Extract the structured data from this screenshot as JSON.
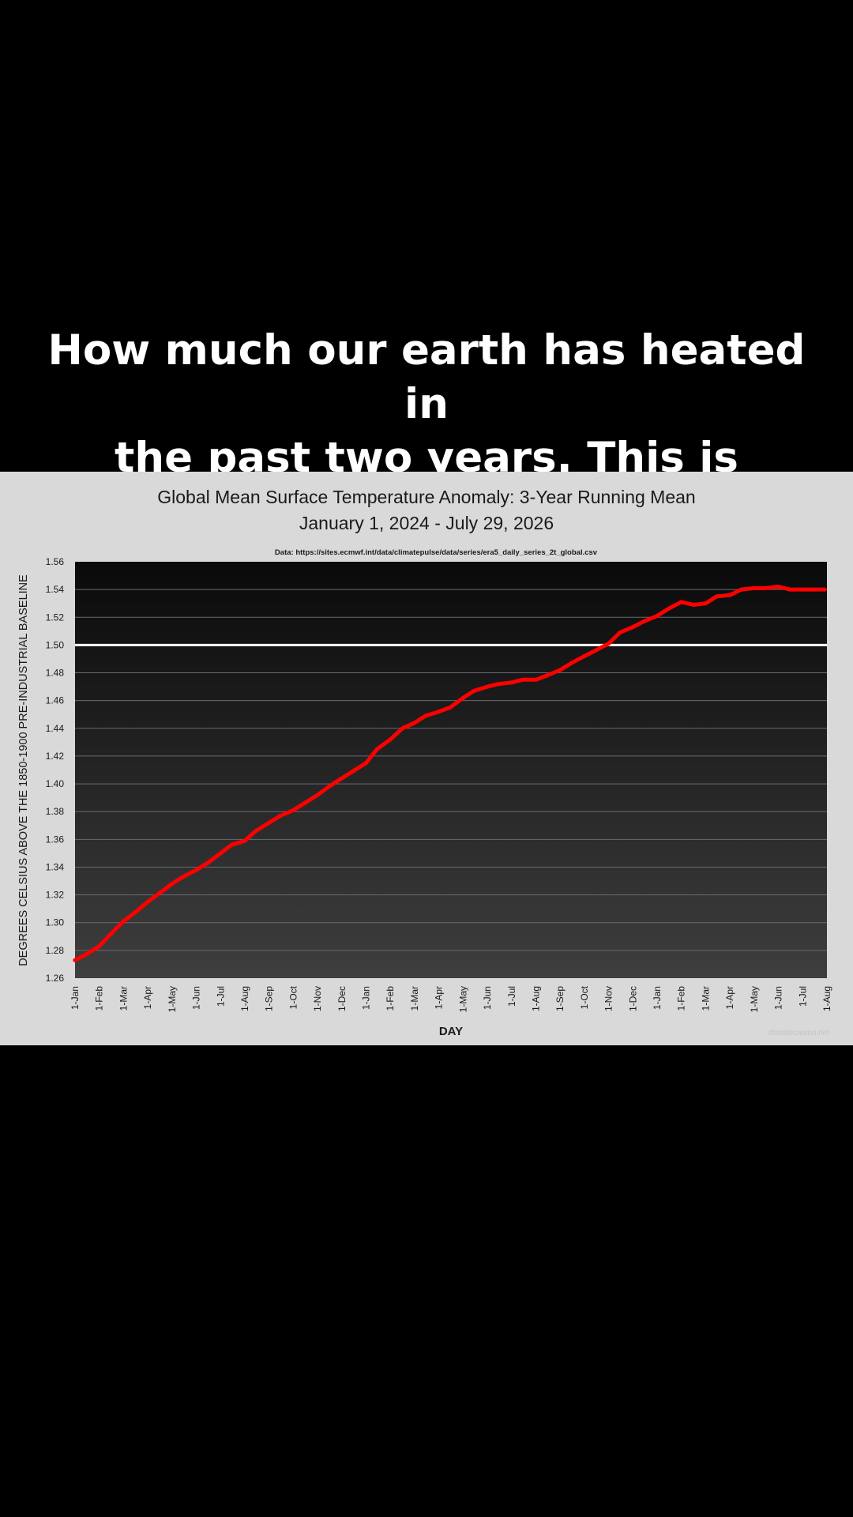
{
  "caption": {
    "line1": "How much our earth has heated in",
    "line2": "the past two years. This is insane"
  },
  "colors": {
    "page_background": "#000000",
    "panel_background": "#d9d9d9",
    "plot_top": "#0a0a0a",
    "plot_bottom": "#3e3e3e",
    "series": "#ff0000",
    "threshold_line": "#ffffff",
    "gridline": "#6a6a78"
  },
  "chart_data": {
    "type": "line",
    "title": "Global Mean Surface Temperature Anomaly: 3-Year Running Mean",
    "subtitle": "January 1, 2024 - July 29, 2026",
    "source_note": "Data: https://sites.ecmwf.int/data/climatepulse/data/series/era5_daily_series_2t_global.csv",
    "xlabel": "DAY",
    "ylabel": "DEGREES CELSIUS ABOVE THE 1850-1900 PRE-INDUSTRIAL BASELINE",
    "watermark": "climatecasino.net",
    "x_ticks": [
      "1-Jan",
      "1-Feb",
      "1-Mar",
      "1-Apr",
      "1-May",
      "1-Jun",
      "1-Jul",
      "1-Aug",
      "1-Sep",
      "1-Oct",
      "1-Nov",
      "1-Dec",
      "1-Jan",
      "1-Feb",
      "1-Mar",
      "1-Apr",
      "1-May",
      "1-Jun",
      "1-Jul",
      "1-Aug",
      "1-Sep",
      "1-Oct",
      "1-Nov",
      "1-Dec",
      "1-Jan",
      "1-Feb",
      "1-Mar",
      "1-Apr",
      "1-May",
      "1-Jun",
      "1-Jul",
      "1-Aug"
    ],
    "y_ticks": [
      "1.26",
      "1.28",
      "1.30",
      "1.32",
      "1.34",
      "1.36",
      "1.38",
      "1.40",
      "1.42",
      "1.44",
      "1.46",
      "1.48",
      "1.50",
      "1.52",
      "1.54",
      "1.56"
    ],
    "ylim": [
      1.26,
      1.56
    ],
    "reference_line": 1.5,
    "grid": true,
    "series": [
      {
        "x": [
          "2024-01-01",
          "2024-01-15",
          "2024-02-01",
          "2024-02-15",
          "2024-03-01",
          "2024-03-15",
          "2024-04-01",
          "2024-04-15",
          "2024-05-01",
          "2024-05-15",
          "2024-06-01",
          "2024-06-15",
          "2024-07-01",
          "2024-07-15",
          "2024-08-01",
          "2024-08-15",
          "2024-09-01",
          "2024-09-15",
          "2024-10-01",
          "2024-10-15",
          "2024-11-01",
          "2024-11-15",
          "2024-12-01",
          "2024-12-15",
          "2025-01-01",
          "2025-01-15",
          "2025-02-01",
          "2025-02-15",
          "2025-03-01",
          "2025-03-15",
          "2025-04-01",
          "2025-04-15",
          "2025-05-01",
          "2025-05-15",
          "2025-06-01",
          "2025-06-15",
          "2025-07-01",
          "2025-07-15",
          "2025-08-01",
          "2025-08-15",
          "2025-09-01",
          "2025-09-15",
          "2025-10-01",
          "2025-10-15",
          "2025-11-01",
          "2025-11-15",
          "2025-12-01",
          "2025-12-15",
          "2026-01-01",
          "2026-01-15",
          "2026-02-01",
          "2026-02-15",
          "2026-03-01",
          "2026-03-15",
          "2026-04-01",
          "2026-04-15",
          "2026-05-01",
          "2026-05-15",
          "2026-06-01",
          "2026-06-15",
          "2026-07-01",
          "2026-07-15",
          "2026-07-29"
        ],
        "y": [
          1.273,
          1.277,
          1.283,
          1.292,
          1.301,
          1.307,
          1.315,
          1.321,
          1.328,
          1.333,
          1.338,
          1.343,
          1.35,
          1.356,
          1.359,
          1.366,
          1.372,
          1.377,
          1.381,
          1.386,
          1.392,
          1.398,
          1.404,
          1.409,
          1.415,
          1.425,
          1.432,
          1.44,
          1.444,
          1.449,
          1.452,
          1.455,
          1.462,
          1.467,
          1.47,
          1.472,
          1.473,
          1.475,
          1.475,
          1.478,
          1.482,
          1.487,
          1.492,
          1.496,
          1.501,
          1.509,
          1.513,
          1.517,
          1.521,
          1.526,
          1.531,
          1.529,
          1.53,
          1.535,
          1.536,
          1.54,
          1.541,
          1.541,
          1.542,
          1.54,
          1.54,
          1.54,
          1.54
        ]
      }
    ]
  }
}
